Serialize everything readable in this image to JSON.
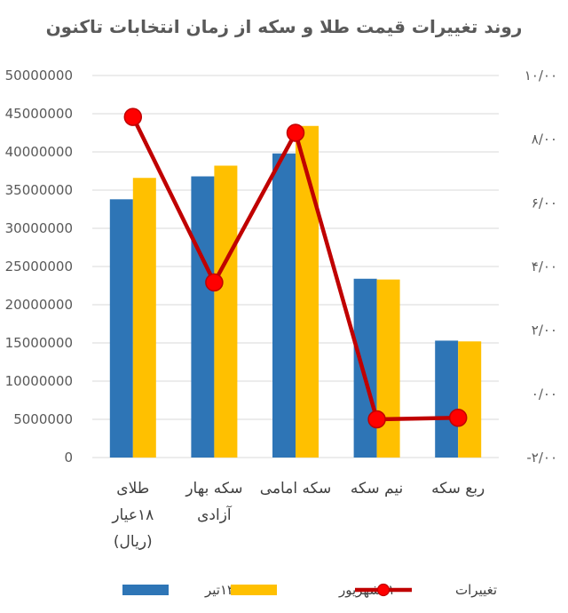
{
  "chart_data": {
    "type": "bar",
    "title": "روند تغییرات قیمت طلا و سکه از زمان انتخابات تاکنون",
    "categories": [
      [
        "طلای",
        "۱۸عیار",
        "(ریال)"
      ],
      [
        "سکه بهار",
        "آزادی"
      ],
      [
        "سکه امامی"
      ],
      [
        "نیم سکه"
      ],
      [
        "ربع سکه"
      ]
    ],
    "series": [
      {
        "name": "۱۳تیر",
        "type": "bar",
        "axis": "left",
        "color": "#2e75b6",
        "values": [
          33800000,
          36800000,
          39800000,
          23400000,
          15300000
        ]
      },
      {
        "name": "۱۱شهریور",
        "type": "bar",
        "axis": "left",
        "color": "#ffc000",
        "values": [
          36600000,
          38200000,
          43400000,
          23300000,
          15200000
        ]
      },
      {
        "name": "تغییرات",
        "type": "line",
        "axis": "right",
        "color": "#c00000",
        "values": [
          8.7,
          3.5,
          8.2,
          -0.8,
          -0.75
        ]
      }
    ],
    "y_left": {
      "range": [
        0,
        50000000
      ],
      "ticks": [
        0,
        5000000,
        10000000,
        15000000,
        20000000,
        25000000,
        30000000,
        35000000,
        40000000,
        45000000,
        50000000
      ],
      "tick_labels": [
        "0",
        "5000000",
        "10000000",
        "15000000",
        "20000000",
        "25000000",
        "30000000",
        "35000000",
        "40000000",
        "45000000",
        "50000000"
      ]
    },
    "y_right": {
      "range": [
        -2,
        10
      ],
      "ticks": [
        -2,
        0,
        2,
        4,
        6,
        8,
        10
      ],
      "tick_labels": [
        "-۲/۰۰",
        "۰/۰۰",
        "۲/۰۰",
        "۴/۰۰",
        "۶/۰۰",
        "۸/۰۰",
        "۱۰/۰۰"
      ]
    },
    "grid": true,
    "legend_position": "bottom"
  }
}
